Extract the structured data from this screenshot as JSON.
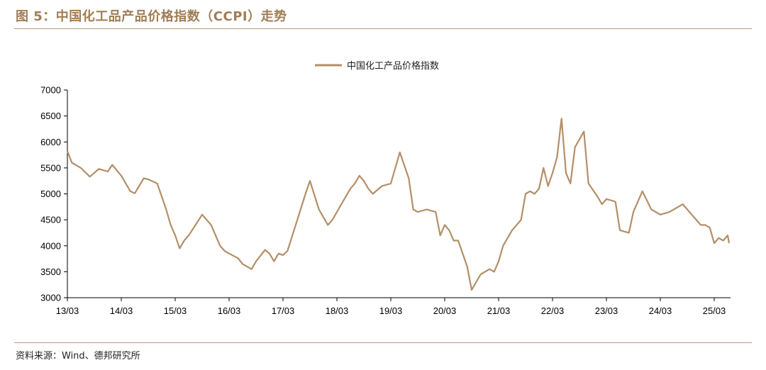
{
  "figure": {
    "title": "图 5：中国化工品产品价格指数（CCPI）走势",
    "source": "资料来源：Wind、德邦研究所"
  },
  "colors": {
    "line": "#b38f67",
    "accent": "#a07d55",
    "rule": "#b49a7a"
  },
  "chart_data": {
    "type": "line",
    "title": "",
    "xlabel": "",
    "ylabel": "",
    "ylim": [
      3000,
      7000
    ],
    "yticks": [
      "3000",
      "3500",
      "4000",
      "4500",
      "5000",
      "5500",
      "6000",
      "6500",
      "7000"
    ],
    "xticks": [
      "13/03",
      "14/03",
      "15/03",
      "16/03",
      "17/03",
      "18/03",
      "19/03",
      "20/03",
      "21/03",
      "22/03",
      "23/03",
      "24/03",
      "25/03"
    ],
    "grid": false,
    "legend_position": "top-center",
    "series": [
      {
        "name": "中国化工产品价格指数",
        "x": [
          "2013-03",
          "2013-04",
          "2013-06",
          "2013-08",
          "2013-10",
          "2013-12",
          "2014-01",
          "2014-03",
          "2014-05",
          "2014-06",
          "2014-08",
          "2014-09",
          "2014-11",
          "2014-12",
          "2015-01",
          "2015-02",
          "2015-03",
          "2015-04",
          "2015-05",
          "2015-06",
          "2015-07",
          "2015-09",
          "2015-11",
          "2016-01",
          "2016-02",
          "2016-03",
          "2016-05",
          "2016-06",
          "2016-08",
          "2016-09",
          "2016-11",
          "2016-12",
          "2017-01",
          "2017-02",
          "2017-03",
          "2017-04",
          "2017-06",
          "2017-08",
          "2017-09",
          "2017-11",
          "2018-01",
          "2018-02",
          "2018-04",
          "2018-06",
          "2018-07",
          "2018-08",
          "2018-09",
          "2018-10",
          "2018-11",
          "2019-01",
          "2019-03",
          "2019-05",
          "2019-07",
          "2019-08",
          "2019-09",
          "2019-11",
          "2020-01",
          "2020-02",
          "2020-03",
          "2020-04",
          "2020-05",
          "2020-06",
          "2020-08",
          "2020-09",
          "2020-11",
          "2021-01",
          "2021-02",
          "2021-03",
          "2021-04",
          "2021-06",
          "2021-08",
          "2021-09",
          "2021-10",
          "2021-11",
          "2021-12",
          "2022-01",
          "2022-02",
          "2022-03",
          "2022-04",
          "2022-05",
          "2022-06",
          "2022-07",
          "2022-08",
          "2022-10",
          "2022-11",
          "2023-01",
          "2023-02",
          "2023-03",
          "2023-05",
          "2023-06",
          "2023-08",
          "2023-09",
          "2023-11",
          "2024-01",
          "2024-03",
          "2024-05",
          "2024-07",
          "2024-08",
          "2024-10",
          "2024-12",
          "2025-01",
          "2025-02",
          "2025-03",
          "2025-04",
          "2025-05",
          "2025-06",
          "2025-07"
        ],
        "values": [
          5820,
          5600,
          5500,
          5330,
          5480,
          5430,
          5560,
          5350,
          5050,
          5010,
          5300,
          5280,
          5200,
          4950,
          4700,
          4400,
          4200,
          3950,
          4100,
          4200,
          4330,
          4600,
          4400,
          4000,
          3900,
          3850,
          3760,
          3650,
          3550,
          3700,
          3920,
          3850,
          3700,
          3850,
          3820,
          3900,
          4450,
          5000,
          5250,
          4700,
          4400,
          4500,
          4800,
          5100,
          5200,
          5350,
          5250,
          5100,
          5000,
          5150,
          5200,
          5800,
          5300,
          4700,
          4650,
          4700,
          4650,
          4200,
          4400,
          4300,
          4100,
          4100,
          3600,
          3150,
          3450,
          3550,
          3500,
          3700,
          4000,
          4300,
          4500,
          5000,
          5050,
          5000,
          5100,
          5500,
          5150,
          5400,
          5700,
          6450,
          5400,
          5200,
          5900,
          6200,
          5200,
          4950,
          4800,
          4900,
          4850,
          4300,
          4250,
          4650,
          5050,
          4700,
          4600,
          4650,
          4750,
          4800,
          4600,
          4400,
          4400,
          4350,
          4050,
          4150,
          4100,
          4200,
          4050
        ]
      }
    ]
  }
}
